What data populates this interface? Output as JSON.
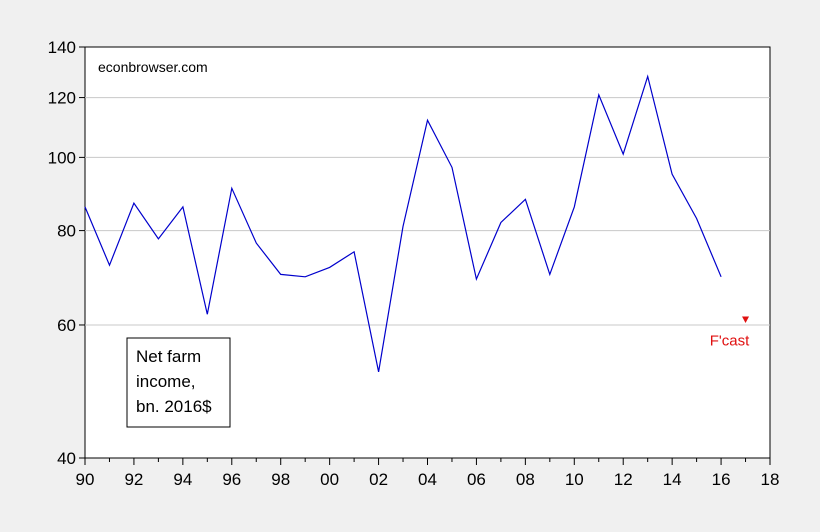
{
  "chart_data": {
    "type": "line",
    "y_scale": "log",
    "ylim": [
      40,
      140
    ],
    "y_ticks": [
      40,
      60,
      80,
      100,
      120,
      140
    ],
    "y_tick_labels": [
      "40",
      "60",
      "80",
      "100",
      "120",
      "140"
    ],
    "xlim": [
      1990,
      2018
    ],
    "x_ticks": [
      1990,
      1992,
      1994,
      1996,
      1998,
      2000,
      2002,
      2004,
      2006,
      2008,
      2010,
      2012,
      2014,
      2016,
      2018
    ],
    "x_tick_labels": [
      "90",
      "92",
      "94",
      "96",
      "98",
      "00",
      "02",
      "04",
      "06",
      "08",
      "10",
      "12",
      "14",
      "16",
      "18"
    ],
    "grid": true,
    "series": [
      {
        "color": "#0000cc",
        "x": [
          1990,
          1991,
          1992,
          1993,
          1994,
          1995,
          1996,
          1997,
          1998,
          1999,
          2000,
          2001,
          2002,
          2003,
          2004,
          2005,
          2006,
          2007,
          2008,
          2009,
          2010,
          2011,
          2012,
          2013,
          2014,
          2015,
          2016
        ],
        "y": [
          86,
          72,
          87,
          78,
          86,
          62,
          91,
          77,
          70,
          69.5,
          71.5,
          75,
          52,
          81,
          112,
          97,
          69,
          82,
          88,
          70,
          86,
          121,
          101,
          128,
          95,
          83,
          69.5
        ]
      }
    ],
    "forecast_point": {
      "x": 2017,
      "y": 61,
      "label": "F'cast",
      "color": "#e01010"
    },
    "annotation_lines": [
      "Net farm",
      "income,",
      "bn. 2016$"
    ],
    "watermark": "econbrowser.com"
  }
}
